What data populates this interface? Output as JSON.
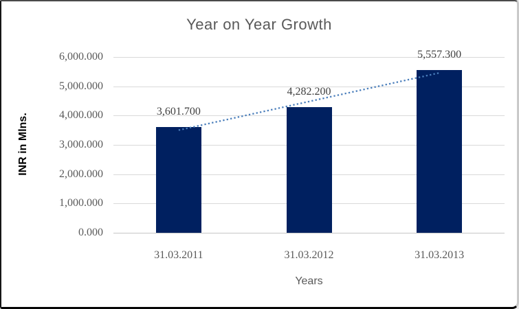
{
  "chart_data": {
    "type": "bar",
    "title": "Year on Year Growth",
    "xlabel": "Years",
    "ylabel": "INR in Mlns.",
    "categories": [
      "31.03.2011",
      "31.03.2012",
      "31.03.2013"
    ],
    "series": [
      {
        "name": "INR in Mlns.",
        "values": [
          3601.7,
          4282.2,
          5557.3
        ]
      }
    ],
    "values": [
      3601.7,
      4282.2,
      5557.3
    ],
    "data_labels": [
      "3,601.700",
      "4,282.200",
      "5,557.300"
    ],
    "ylim": [
      0,
      6000
    ],
    "y_ticks": [
      {
        "value": 6000,
        "label": "6,000.000"
      },
      {
        "value": 5000,
        "label": "5,000.000"
      },
      {
        "value": 4000,
        "label": "4,000.000"
      },
      {
        "value": 3000,
        "label": "3,000.000"
      },
      {
        "value": 2000,
        "label": "2,000.000"
      },
      {
        "value": 1000,
        "label": "1,000.000"
      },
      {
        "value": 0,
        "label": "0.000"
      }
    ],
    "grid": "horizontal",
    "legend": "none",
    "trendline": {
      "type": "linear",
      "style": "dotted",
      "color": "#4a7ebb"
    },
    "colors": {
      "bar": "#002060",
      "gridline": "#d9d9d9",
      "axis_line": "#c6c6c6",
      "title_text": "#595959",
      "tick_text": "#595959",
      "data_label_text": "#404040"
    }
  }
}
